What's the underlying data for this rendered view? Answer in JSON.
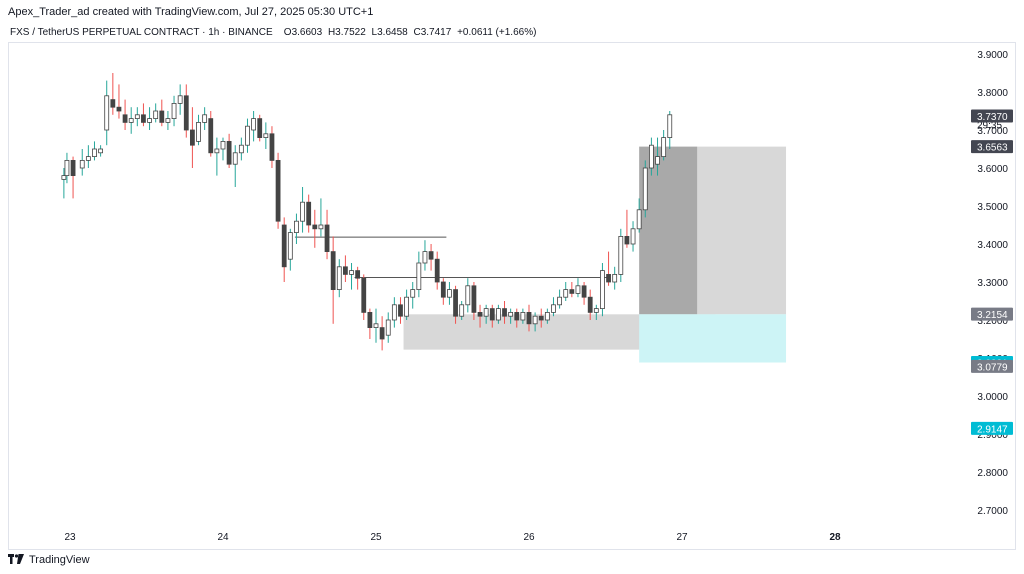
{
  "header": {
    "credit": "Apex_Trader_ad created with TradingView.com, Jul 27, 2025 05:30 UTC+1"
  },
  "legend": {
    "symbol": "FXS / TetherUS PERPETUAL CONTRACT · 1h · BINANCE",
    "o_label": "O",
    "o": "3.6603",
    "h_label": "H",
    "h": "3.7522",
    "l_label": "L",
    "l": "3.6458",
    "c_label": "C",
    "c": "3.7417",
    "change": "+0.0611 (+1.66%)"
  },
  "footer": {
    "brand": "TradingView",
    "logo_icon": "tradingview-logo-icon"
  },
  "colors": {
    "up": "#26a69a",
    "down": "#ef5350",
    "candle_body": "#444444",
    "zone_grey": "#d1d1d1",
    "zone_dark": "#a9a9a9",
    "zone_cyan": "#cdf4f6",
    "tag_grey": "#787b86",
    "tag_dark": "#434651",
    "tag_cyan": "#00bcd4"
  },
  "chart_data": {
    "type": "candlestick",
    "y_axis": {
      "ticks": [
        "3.9000",
        "3.8000",
        "3.7000",
        "3.6000",
        "3.5000",
        "3.4000",
        "3.3000",
        "3.2000",
        "3.1000",
        "3.0000",
        "2.9000",
        "2.8000",
        "2.7000"
      ],
      "range": [
        2.66,
        3.97
      ]
    },
    "x_axis": {
      "ticks": [
        "23",
        "24",
        "25",
        "26",
        "27",
        "28"
      ]
    },
    "price_tags": [
      {
        "text": "3.7417",
        "value": 3.7417,
        "style": "plain"
      },
      {
        "text": "29:35",
        "value": 3.715,
        "style": "plain"
      },
      {
        "text": "3.7370",
        "value": 3.737,
        "style": "dark"
      },
      {
        "text": "3.6563",
        "value": 3.6563,
        "style": "dark"
      },
      {
        "text": "3.2154",
        "value": 3.2154,
        "style": "grey"
      },
      {
        "text": "3.0881",
        "value": 3.0881,
        "style": "cyan"
      },
      {
        "text": "3.0779",
        "value": 3.0779,
        "style": "grey"
      },
      {
        "text": "2.9147",
        "value": 2.9147,
        "style": "cyan"
      }
    ],
    "zones": [
      {
        "kind": "grey",
        "x0": 25.18,
        "x1": 27.22,
        "y0": 3.215,
        "y1": 3.122
      },
      {
        "kind": "dark",
        "x0": 26.72,
        "x1": 27.1,
        "y0": 3.6563,
        "y1": 3.215
      },
      {
        "kind": "grey",
        "x0": 27.1,
        "x1": 27.68,
        "y0": 3.6563,
        "y1": 3.215
      },
      {
        "kind": "cyan",
        "x0": 26.72,
        "x1": 27.68,
        "y0": 3.215,
        "y1": 3.0881
      }
    ],
    "levels": [
      {
        "x0": 24.47,
        "x1": 25.46,
        "y": 3.418
      },
      {
        "x0": 24.86,
        "x1": 26.52,
        "y": 3.312
      }
    ],
    "candles": [
      [
        22.96,
        3.57,
        3.6,
        3.52,
        3.58
      ],
      [
        22.98,
        3.58,
        3.64,
        3.56,
        3.62
      ],
      [
        23.02,
        3.62,
        3.63,
        3.52,
        3.58
      ],
      [
        23.08,
        3.6,
        3.65,
        3.58,
        3.62
      ],
      [
        23.12,
        3.62,
        3.66,
        3.6,
        3.63
      ],
      [
        23.16,
        3.63,
        3.67,
        3.62,
        3.65
      ],
      [
        23.2,
        3.64,
        3.66,
        3.63,
        3.65
      ],
      [
        23.24,
        3.7,
        3.83,
        3.66,
        3.79
      ],
      [
        23.28,
        3.78,
        3.85,
        3.74,
        3.76
      ],
      [
        23.32,
        3.76,
        3.82,
        3.73,
        3.75
      ],
      [
        23.36,
        3.74,
        3.78,
        3.7,
        3.72
      ],
      [
        23.4,
        3.72,
        3.76,
        3.69,
        3.73
      ],
      [
        23.44,
        3.73,
        3.76,
        3.71,
        3.74
      ],
      [
        23.48,
        3.74,
        3.77,
        3.71,
        3.72
      ],
      [
        23.52,
        3.72,
        3.76,
        3.7,
        3.73
      ],
      [
        23.56,
        3.73,
        3.77,
        3.72,
        3.75
      ],
      [
        23.6,
        3.75,
        3.78,
        3.71,
        3.72
      ],
      [
        23.64,
        3.72,
        3.75,
        3.7,
        3.73
      ],
      [
        23.68,
        3.73,
        3.79,
        3.71,
        3.77
      ],
      [
        23.72,
        3.77,
        3.82,
        3.74,
        3.79
      ],
      [
        23.76,
        3.79,
        3.82,
        3.68,
        3.7
      ],
      [
        23.8,
        3.7,
        3.76,
        3.6,
        3.66
      ],
      [
        23.84,
        3.67,
        3.74,
        3.66,
        3.72
      ],
      [
        23.88,
        3.72,
        3.76,
        3.7,
        3.74
      ],
      [
        23.92,
        3.73,
        3.75,
        3.63,
        3.64
      ],
      [
        23.96,
        3.64,
        3.68,
        3.58,
        3.65
      ],
      [
        24.0,
        3.65,
        3.68,
        3.62,
        3.67
      ],
      [
        24.04,
        3.67,
        3.69,
        3.6,
        3.61
      ],
      [
        24.08,
        3.61,
        3.66,
        3.55,
        3.64
      ],
      [
        24.12,
        3.64,
        3.68,
        3.62,
        3.66
      ],
      [
        24.16,
        3.66,
        3.73,
        3.64,
        3.71
      ],
      [
        24.2,
        3.7,
        3.75,
        3.67,
        3.73
      ],
      [
        24.24,
        3.73,
        3.74,
        3.67,
        3.68
      ],
      [
        24.28,
        3.68,
        3.72,
        3.65,
        3.69
      ],
      [
        24.32,
        3.69,
        3.71,
        3.6,
        3.62
      ],
      [
        24.36,
        3.62,
        3.64,
        3.44,
        3.46
      ],
      [
        24.4,
        3.45,
        3.47,
        3.3,
        3.34
      ],
      [
        24.44,
        3.36,
        3.44,
        3.33,
        3.43
      ],
      [
        24.48,
        3.43,
        3.48,
        3.4,
        3.46
      ],
      [
        24.52,
        3.46,
        3.55,
        3.43,
        3.51
      ],
      [
        24.56,
        3.51,
        3.53,
        3.43,
        3.45
      ],
      [
        24.6,
        3.45,
        3.49,
        3.39,
        3.44
      ],
      [
        24.64,
        3.44,
        3.52,
        3.42,
        3.45
      ],
      [
        24.68,
        3.45,
        3.49,
        3.36,
        3.38
      ],
      [
        24.72,
        3.38,
        3.42,
        3.19,
        3.28
      ],
      [
        24.76,
        3.28,
        3.36,
        3.26,
        3.34
      ],
      [
        24.8,
        3.34,
        3.37,
        3.3,
        3.32
      ],
      [
        24.84,
        3.32,
        3.35,
        3.28,
        3.33
      ],
      [
        24.88,
        3.33,
        3.34,
        3.28,
        3.31
      ],
      [
        24.92,
        3.31,
        3.32,
        3.2,
        3.22
      ],
      [
        24.96,
        3.22,
        3.23,
        3.15,
        3.18
      ],
      [
        25.0,
        3.18,
        3.23,
        3.14,
        3.19
      ],
      [
        25.04,
        3.18,
        3.21,
        3.12,
        3.15
      ],
      [
        25.08,
        3.16,
        3.22,
        3.14,
        3.2
      ],
      [
        25.12,
        3.2,
        3.26,
        3.18,
        3.24
      ],
      [
        25.16,
        3.24,
        3.26,
        3.19,
        3.21
      ],
      [
        25.2,
        3.21,
        3.28,
        3.2,
        3.26
      ],
      [
        25.24,
        3.26,
        3.3,
        3.23,
        3.28
      ],
      [
        25.28,
        3.28,
        3.38,
        3.26,
        3.35
      ],
      [
        25.32,
        3.35,
        3.41,
        3.33,
        3.38
      ],
      [
        25.36,
        3.38,
        3.4,
        3.33,
        3.36
      ],
      [
        25.4,
        3.36,
        3.38,
        3.28,
        3.3
      ],
      [
        25.44,
        3.3,
        3.31,
        3.24,
        3.26
      ],
      [
        25.48,
        3.26,
        3.3,
        3.24,
        3.28
      ],
      [
        25.52,
        3.28,
        3.29,
        3.19,
        3.21
      ],
      [
        25.56,
        3.21,
        3.25,
        3.2,
        3.24
      ],
      [
        25.6,
        3.24,
        3.31,
        3.22,
        3.29
      ],
      [
        25.64,
        3.29,
        3.3,
        3.2,
        3.22
      ],
      [
        25.68,
        3.22,
        3.24,
        3.18,
        3.21
      ],
      [
        25.72,
        3.21,
        3.24,
        3.19,
        3.23
      ],
      [
        25.76,
        3.23,
        3.24,
        3.18,
        3.2
      ],
      [
        25.8,
        3.2,
        3.24,
        3.19,
        3.23
      ],
      [
        25.84,
        3.23,
        3.25,
        3.19,
        3.21
      ],
      [
        25.88,
        3.21,
        3.23,
        3.19,
        3.22
      ],
      [
        25.92,
        3.22,
        3.23,
        3.18,
        3.2
      ],
      [
        25.96,
        3.2,
        3.23,
        3.19,
        3.22
      ],
      [
        26.0,
        3.22,
        3.24,
        3.17,
        3.19
      ],
      [
        26.04,
        3.19,
        3.22,
        3.17,
        3.21
      ],
      [
        26.08,
        3.21,
        3.23,
        3.18,
        3.2
      ],
      [
        26.12,
        3.2,
        3.23,
        3.19,
        3.22
      ],
      [
        26.16,
        3.22,
        3.26,
        3.21,
        3.24
      ],
      [
        26.2,
        3.24,
        3.28,
        3.23,
        3.26
      ],
      [
        26.24,
        3.26,
        3.3,
        3.25,
        3.28
      ],
      [
        26.28,
        3.28,
        3.3,
        3.26,
        3.27
      ],
      [
        26.32,
        3.27,
        3.31,
        3.26,
        3.29
      ],
      [
        26.36,
        3.29,
        3.3,
        3.24,
        3.26
      ],
      [
        26.4,
        3.26,
        3.28,
        3.2,
        3.22
      ],
      [
        26.44,
        3.22,
        3.24,
        3.2,
        3.23
      ],
      [
        26.48,
        3.23,
        3.35,
        3.21,
        3.33
      ],
      [
        26.52,
        3.32,
        3.38,
        3.29,
        3.3
      ],
      [
        26.56,
        3.3,
        3.34,
        3.28,
        3.32
      ],
      [
        26.6,
        3.32,
        3.44,
        3.3,
        3.42
      ],
      [
        26.64,
        3.42,
        3.49,
        3.39,
        3.4
      ],
      [
        26.68,
        3.4,
        3.46,
        3.38,
        3.44
      ],
      [
        26.72,
        3.44,
        3.52,
        3.43,
        3.49
      ],
      [
        26.76,
        3.49,
        3.62,
        3.47,
        3.6
      ],
      [
        26.8,
        3.6,
        3.68,
        3.58,
        3.66
      ],
      [
        26.84,
        3.61,
        3.68,
        3.58,
        3.63
      ],
      [
        26.88,
        3.63,
        3.7,
        3.62,
        3.68
      ],
      [
        26.92,
        3.68,
        3.75,
        3.65,
        3.74
      ]
    ]
  }
}
